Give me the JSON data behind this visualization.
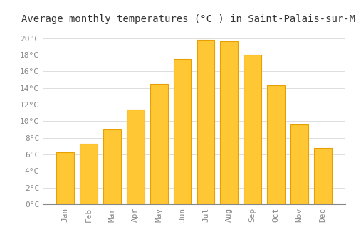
{
  "title": "Average monthly temperatures (°C ) in Saint-Palais-sur-Mer",
  "months": [
    "Jan",
    "Feb",
    "Mar",
    "Apr",
    "May",
    "Jun",
    "Jul",
    "Aug",
    "Sep",
    "Oct",
    "Nov",
    "Dec"
  ],
  "temperatures": [
    6.3,
    7.3,
    9.0,
    11.4,
    14.5,
    17.5,
    19.8,
    19.6,
    18.0,
    14.3,
    9.6,
    6.8
  ],
  "bar_color": "#FFC733",
  "bar_edge_color": "#E8A000",
  "background_color": "#FFFFFF",
  "grid_color": "#DDDDDD",
  "ylim": [
    0,
    21
  ],
  "yticks": [
    0,
    2,
    4,
    6,
    8,
    10,
    12,
    14,
    16,
    18,
    20
  ],
  "title_fontsize": 10,
  "tick_fontsize": 8,
  "tick_font_color": "#888888",
  "title_color": "#333333"
}
